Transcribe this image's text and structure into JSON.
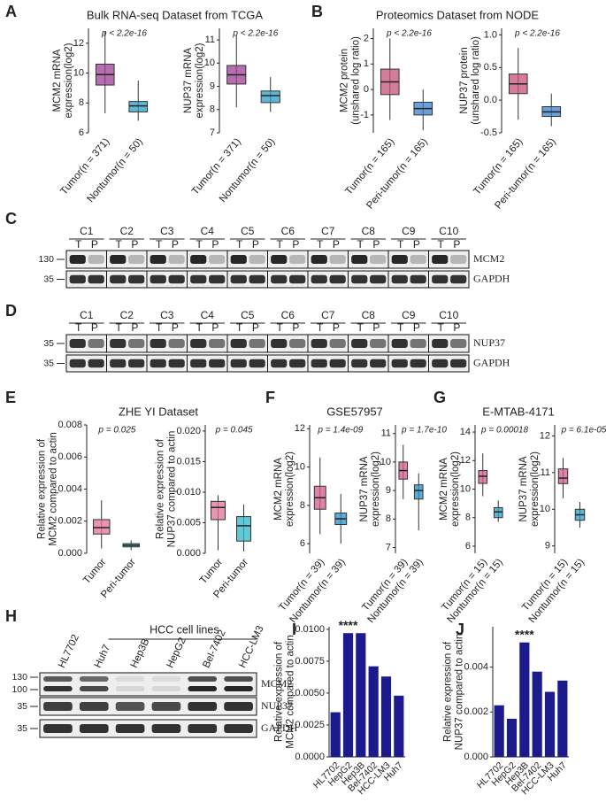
{
  "panels": [
    "A",
    "B",
    "C",
    "D",
    "E",
    "F",
    "G",
    "H",
    "I",
    "J"
  ],
  "chart_data": [
    {
      "type": "box",
      "title": "Bulk RNA-seq Dataset from TCGA",
      "ylabel": [
        "MCM2 mRNA",
        "expression(log2)"
      ],
      "annotation": "p < 2.2e-16",
      "categories": [
        "Tumor(n = 371)",
        "Nontumor(n = 50)"
      ],
      "boxes": [
        {
          "min": 7.3,
          "q1": 9.2,
          "median": 9.9,
          "q3": 10.6,
          "max": 12.8
        },
        {
          "min": 6.8,
          "q1": 7.4,
          "median": 7.8,
          "q3": 8.1,
          "max": 9.5
        }
      ],
      "colors": [
        "#9c3f93",
        "#2b9fc6"
      ],
      "ylim": [
        6,
        13
      ],
      "yticks": [
        6,
        8,
        10,
        12
      ]
    },
    {
      "type": "box",
      "ylabel": [
        "NUP37 mRNA",
        "expression(log2)"
      ],
      "annotation": "p < 2.2e-16",
      "categories": [
        "Tumor(n = 371)",
        "Nontumor(n = 50)"
      ],
      "boxes": [
        {
          "min": 8.1,
          "q1": 9.1,
          "median": 9.5,
          "q3": 9.9,
          "max": 11.2
        },
        {
          "min": 7.9,
          "q1": 8.3,
          "median": 8.6,
          "q3": 8.8,
          "max": 9.4
        }
      ],
      "colors": [
        "#9c3f93",
        "#2b9fc6"
      ],
      "ylim": [
        7,
        11.5
      ],
      "yticks": [
        7,
        8,
        9,
        10,
        11
      ]
    },
    {
      "type": "box",
      "title": "Proteomics Dataset from NODE",
      "ylabel": [
        "MCM2 protein",
        "(unshared log ratio)"
      ],
      "annotation": "p < 2.2e-16",
      "categories": [
        "Tumor(n = 165)",
        "Peri-tumor(n = 165)"
      ],
      "boxes": [
        {
          "min": -1.2,
          "q1": -0.2,
          "median": 0.3,
          "q3": 0.8,
          "max": 2.0
        },
        {
          "min": -1.6,
          "q1": -1.0,
          "median": -0.75,
          "q3": -0.5,
          "max": 0.0
        }
      ],
      "colors": [
        "#c8507a",
        "#3a7fd0"
      ],
      "ylim": [
        -1.7,
        2.4
      ],
      "yticks": [
        -1,
        0,
        1,
        2
      ]
    },
    {
      "type": "box",
      "ylabel": [
        "NUP37 protein",
        "(unshared log ratio)"
      ],
      "annotation": "p < 2.2e-16",
      "categories": [
        "Tumor(n = 165)",
        "Peri-tumor(n = 165)"
      ],
      "boxes": [
        {
          "min": -0.3,
          "q1": 0.1,
          "median": 0.25,
          "q3": 0.4,
          "max": 0.8
        },
        {
          "min": -0.4,
          "q1": -0.25,
          "median": -0.18,
          "q3": -0.1,
          "max": 0.1
        }
      ],
      "colors": [
        "#c8507a",
        "#3a7fd0"
      ],
      "ylim": [
        -0.5,
        1.1
      ],
      "yticks": [
        -0.5,
        {
          "value": 0,
          "label": "0.0"
        },
        0.5,
        {
          "value": 1,
          "label": "1.0"
        }
      ]
    },
    {
      "type": "box",
      "title": "ZHE YI Dataset",
      "ylabel": [
        "Relative expression  of",
        "MCM2 compared to actin"
      ],
      "annotation": "p = 0.025",
      "categories": [
        "Tumor",
        "Peri-tumor"
      ],
      "boxes": [
        {
          "min": 0.0003,
          "q1": 0.0012,
          "median": 0.0016,
          "q3": 0.0021,
          "max": 0.0033
        },
        {
          "min": 0.0002,
          "q1": 0.0004,
          "median": 0.0005,
          "q3": 0.0006,
          "max": 0.0008
        }
      ],
      "colors": [
        "#e0709a",
        "#2fb5c8"
      ],
      "ylim": [
        0,
        0.008
      ],
      "yticks": [
        {
          "value": 0,
          "label": "0.000"
        },
        0.002,
        0.004,
        0.006,
        0.008
      ]
    },
    {
      "type": "box",
      "ylabel": [
        "Relative expression of",
        "NUP37 compared to actin"
      ],
      "annotation": "p = 0.045",
      "categories": [
        "Tumor",
        "Peri-tumor"
      ],
      "boxes": [
        {
          "min": 0.0005,
          "q1": 0.0055,
          "median": 0.0075,
          "q3": 0.0085,
          "max": 0.0095
        },
        {
          "min": 0.0003,
          "q1": 0.002,
          "median": 0.0045,
          "q3": 0.006,
          "max": 0.008
        }
      ],
      "colors": [
        "#e0709a",
        "#2fb5c8"
      ],
      "ylim": [
        0,
        0.021
      ],
      "yticks": [
        {
          "value": 0,
          "label": "0.000"
        },
        0.005,
        {
          "value": 0.01,
          "label": "0.010"
        },
        0.015,
        {
          "value": 0.02,
          "label": "0.020"
        }
      ]
    },
    {
      "type": "box",
      "title": "GSE57957",
      "ylabel": [
        "MCM2 mRNA",
        "expression(log2)"
      ],
      "annotation": "p = 1.4e-09",
      "categories": [
        "Tumor(n = 39)",
        "Nontumor(n = 39)"
      ],
      "boxes": [
        {
          "min": 6.5,
          "q1": 7.8,
          "median": 8.4,
          "q3": 9.0,
          "max": 10.5
        },
        {
          "min": 6.0,
          "q1": 7.0,
          "median": 7.3,
          "q3": 7.6,
          "max": 8.6
        }
      ],
      "colors": [
        "#d05a8a",
        "#2b8fc6"
      ],
      "ylim": [
        5.5,
        12.2
      ],
      "yticks": [
        6,
        8,
        10,
        12
      ]
    },
    {
      "type": "box",
      "ylabel": [
        "NUP37 mRNA",
        "expression(log2)"
      ],
      "annotation": "p = 1.7e-10",
      "categories": [
        "Tumor(n = 39)",
        "Nontumor(n = 39)"
      ],
      "boxes": [
        {
          "min": 8.7,
          "q1": 9.4,
          "median": 9.7,
          "q3": 10.0,
          "max": 10.6
        },
        {
          "min": 7.6,
          "q1": 8.7,
          "median": 9.0,
          "q3": 9.2,
          "max": 9.6
        }
      ],
      "colors": [
        "#d05a8a",
        "#2b8fc6"
      ],
      "ylim": [
        6.8,
        11.3
      ],
      "yticks": [
        7,
        8,
        9,
        10,
        11
      ]
    },
    {
      "type": "box",
      "title": "E-MTAB-4171",
      "ylabel": [
        "MCM2 mRNA",
        "expression(log2)"
      ],
      "annotation": "p = 0.00018",
      "categories": [
        "Tumor(n = 15)",
        "Nontumor(n = 15)"
      ],
      "boxes": [
        {
          "min": 9.5,
          "q1": 10.4,
          "median": 10.9,
          "q3": 11.3,
          "max": 12.5
        },
        {
          "min": 7.7,
          "q1": 8.0,
          "median": 8.4,
          "q3": 8.7,
          "max": 9.2
        }
      ],
      "colors": [
        "#d05a8a",
        "#2b9fc6"
      ],
      "ylim": [
        5.5,
        14.5
      ],
      "yticks": [
        6,
        8,
        10,
        12,
        14
      ]
    },
    {
      "type": "box",
      "ylabel": [
        "NUP37 mRNA",
        "expression(log2)"
      ],
      "annotation": "p = 6.1e-05",
      "categories": [
        "Tumor(n = 15)",
        "Nontumor(n = 15)"
      ],
      "boxes": [
        {
          "min": 10.3,
          "q1": 10.7,
          "median": 10.85,
          "q3": 11.1,
          "max": 11.4
        },
        {
          "min": 9.5,
          "q1": 9.7,
          "median": 9.85,
          "q3": 10.0,
          "max": 10.2
        }
      ],
      "colors": [
        "#d05a8a",
        "#2b9fc6"
      ],
      "ylim": [
        8.8,
        12.3
      ],
      "yticks": [
        9,
        10,
        11,
        12
      ]
    },
    {
      "type": "bar",
      "ylabel": [
        "Relative expression of",
        "MCM2 compared to actin"
      ],
      "annotation": "****",
      "categories": [
        "HL7702",
        "HepG2",
        "Hep3B",
        "Bel-7402",
        "HCC-LM3",
        "Huh7"
      ],
      "values": [
        0.0035,
        0.0097,
        0.0097,
        0.0071,
        0.0063,
        0.0048
      ],
      "color": "#1b1b8e",
      "ylim": [
        0,
        0.0102
      ],
      "yticks": [
        {
          "value": 0,
          "label": "0.0000"
        },
        0.0025,
        {
          "value": 0.005,
          "label": "0.0050"
        },
        0.0075,
        {
          "value": 0.01,
          "label": "0.0100"
        }
      ]
    },
    {
      "type": "bar",
      "ylabel": [
        "Relative expression of",
        "NUP37 compared to actin"
      ],
      "annotation": "****",
      "categories": [
        "HL7702",
        "HepG2",
        "Hep3B",
        "Bel-7402",
        "HCC-LM3",
        "Huh7"
      ],
      "values": [
        0.0023,
        0.0017,
        0.0051,
        0.0038,
        0.0029,
        0.0034
      ],
      "color": "#1b1b8e",
      "ylim": [
        0,
        0.0058
      ],
      "yticks": [
        {
          "value": 0,
          "label": "0.000"
        },
        0.002,
        0.004
      ]
    }
  ],
  "blots": [
    {
      "lanes": [
        "C1",
        "C2",
        "C3",
        "C4",
        "C5",
        "C6",
        "C7",
        "C8",
        "C9",
        "C10"
      ],
      "lane_sub": [
        "T",
        "P"
      ],
      "rows": [
        {
          "label": "MCM2",
          "markers": [
            "130"
          ]
        },
        {
          "label": "GAPDH",
          "markers": [
            "35"
          ]
        }
      ]
    },
    {
      "lanes": [
        "C1",
        "C2",
        "C3",
        "C4",
        "C5",
        "C6",
        "C7",
        "C8",
        "C9",
        "C10"
      ],
      "lane_sub": [
        "T",
        "P"
      ],
      "rows": [
        {
          "label": "NUP37",
          "markers": [
            "35"
          ]
        },
        {
          "label": "GAPDH",
          "markers": [
            "35"
          ]
        }
      ]
    },
    {
      "group_label": "HCC cell lines",
      "lanes": [
        "HL7702",
        "Huh7",
        "Hep3B",
        "HepG2",
        "Bel-7402",
        "HCC-LM3"
      ],
      "rows": [
        {
          "label": "MCM2",
          "markers": [
            "130",
            "100"
          ]
        },
        {
          "label": "NUP37",
          "markers": [
            "35"
          ]
        },
        {
          "label": "GAPDH",
          "markers": [
            "35"
          ]
        }
      ]
    }
  ]
}
